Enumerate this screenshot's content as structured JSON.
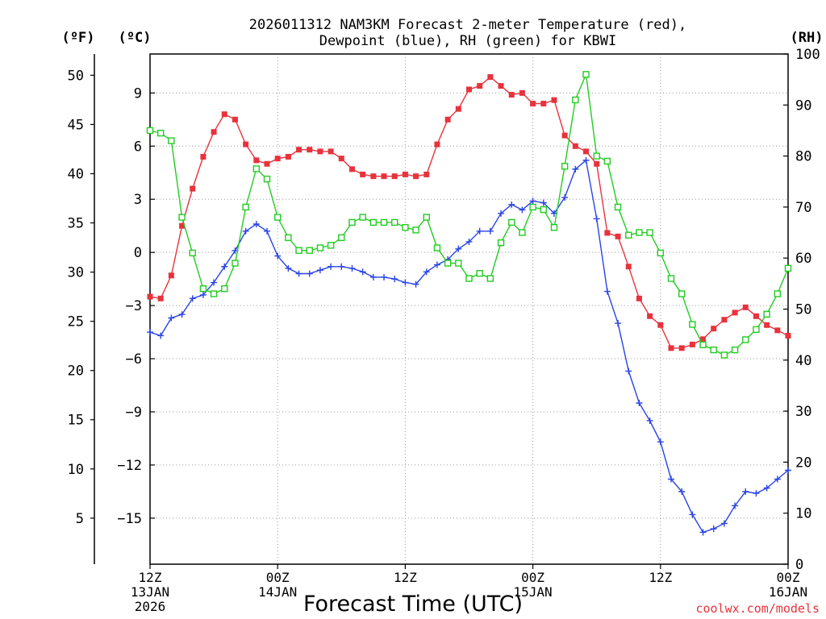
{
  "chart_data": {
    "type": "line",
    "title_line1": "2026011312 NAM3KM Forecast 2-meter Temperature (red),",
    "title_line2": "Dewpoint (blue), RH (green) for KBWI",
    "left_outer_unit": "(ºF)",
    "left_inner_unit": "(ºC)",
    "right_unit": "(RH)",
    "xlabel": "Forecast Time (UTC)",
    "credit": "coolwx.com/models",
    "xlim_hours": [
      0,
      36
    ],
    "celsius_ylim": [
      -17.6,
      11.2
    ],
    "rh_ylim": [
      0,
      100
    ],
    "fahrenheit_ticks": [
      {
        "value": 50,
        "label": "50"
      },
      {
        "value": 45,
        "label": "45"
      },
      {
        "value": 40,
        "label": "40"
      },
      {
        "value": 35,
        "label": "35"
      },
      {
        "value": 30,
        "label": "30"
      },
      {
        "value": 25,
        "label": "25"
      },
      {
        "value": 20,
        "label": "20"
      },
      {
        "value": 15,
        "label": "15"
      },
      {
        "value": 10,
        "label": "10"
      },
      {
        "value": 5,
        "label": "5"
      }
    ],
    "celsius_ticks": [
      {
        "value": 9,
        "label": "9"
      },
      {
        "value": 6,
        "label": "6"
      },
      {
        "value": 3,
        "label": "3"
      },
      {
        "value": 0,
        "label": "0"
      },
      {
        "value": -3,
        "label": "−3"
      },
      {
        "value": -6,
        "label": "−6"
      },
      {
        "value": -9,
        "label": "−9"
      },
      {
        "value": -12,
        "label": "−12"
      },
      {
        "value": -15,
        "label": "−15"
      }
    ],
    "rh_ticks": [
      {
        "value": 100,
        "label": "100"
      },
      {
        "value": 90,
        "label": "90"
      },
      {
        "value": 80,
        "label": "80"
      },
      {
        "value": 70,
        "label": "70"
      },
      {
        "value": 60,
        "label": "60"
      },
      {
        "value": 50,
        "label": "50"
      },
      {
        "value": 40,
        "label": "40"
      },
      {
        "value": 30,
        "label": "30"
      },
      {
        "value": 20,
        "label": "20"
      },
      {
        "value": 10,
        "label": "10"
      },
      {
        "value": 0,
        "label": "0"
      }
    ],
    "x_ticks": [
      {
        "hour": 0,
        "lines": [
          "12Z",
          "13JAN",
          "2026"
        ]
      },
      {
        "hour": 7.2,
        "lines": [
          "00Z",
          "14JAN"
        ]
      },
      {
        "hour": 14.4,
        "lines": [
          "12Z"
        ]
      },
      {
        "hour": 21.6,
        "lines": [
          "00Z",
          "15JAN"
        ]
      },
      {
        "hour": 28.8,
        "lines": [
          "12Z"
        ]
      },
      {
        "hour": 36,
        "lines": [
          "00Z",
          "16JAN"
        ]
      }
    ],
    "series": [
      {
        "name": "Temperature",
        "color": "#e8323c",
        "marker": "filled-square",
        "x": [
          0,
          0.6,
          1.2,
          1.8,
          2.4,
          3.0,
          3.6,
          4.2,
          4.8,
          5.4,
          6.0,
          6.6,
          7.2,
          7.8,
          8.4,
          9.0,
          9.6,
          10.2,
          10.8,
          11.4,
          12.0,
          12.6,
          13.2,
          13.8,
          14.4,
          15.0,
          15.6,
          16.2,
          16.8,
          17.4,
          18.0,
          18.6,
          19.2,
          19.8,
          20.4,
          21.0,
          21.6,
          22.2,
          22.8,
          23.4,
          24.0,
          24.6,
          25.2,
          25.8,
          26.4,
          27.0,
          27.6,
          28.2,
          28.8,
          29.4,
          30.0,
          30.6,
          31.2,
          31.8,
          32.4,
          33.0,
          33.6,
          34.2,
          34.8,
          35.4,
          36.0
        ],
        "values": [
          -2.5,
          -2.6,
          -1.3,
          1.5,
          3.6,
          5.4,
          6.8,
          7.8,
          7.5,
          6.1,
          5.2,
          5.0,
          5.3,
          5.4,
          5.8,
          5.8,
          5.7,
          5.7,
          5.3,
          4.7,
          4.4,
          4.3,
          4.3,
          4.3,
          4.4,
          4.3,
          4.4,
          6.1,
          7.5,
          8.1,
          9.2,
          9.4,
          9.9,
          9.4,
          8.9,
          9.0,
          8.4,
          8.4,
          8.6,
          6.6,
          6.0,
          5.7,
          5.0,
          1.1,
          0.9,
          -0.8,
          -2.6,
          -3.6,
          -4.1,
          -5.4,
          -5.4,
          -5.2,
          -4.9,
          -4.3,
          -3.8,
          -3.4,
          -3.1,
          -3.6,
          -4.1,
          -4.4,
          -4.7
        ]
      },
      {
        "name": "Dewpoint",
        "color": "#2a44e6",
        "marker": "plus",
        "x": [
          0,
          0.6,
          1.2,
          1.8,
          2.4,
          3.0,
          3.6,
          4.2,
          4.8,
          5.4,
          6.0,
          6.6,
          7.2,
          7.8,
          8.4,
          9.0,
          9.6,
          10.2,
          10.8,
          11.4,
          12.0,
          12.6,
          13.2,
          13.8,
          14.4,
          15.0,
          15.6,
          16.2,
          16.8,
          17.4,
          18.0,
          18.6,
          19.2,
          19.8,
          20.4,
          21.0,
          21.6,
          22.2,
          22.8,
          23.4,
          24.0,
          24.6,
          25.2,
          25.8,
          26.4,
          27.0,
          27.6,
          28.2,
          28.8,
          29.4,
          30.0,
          30.6,
          31.2,
          31.8,
          32.4,
          33.0,
          33.6,
          34.2,
          34.8,
          35.4,
          36.0
        ],
        "values": [
          -4.5,
          -4.7,
          -3.7,
          -3.5,
          -2.6,
          -2.4,
          -1.7,
          -0.8,
          0.1,
          1.2,
          1.6,
          1.2,
          -0.2,
          -0.9,
          -1.2,
          -1.2,
          -1.0,
          -0.8,
          -0.8,
          -0.9,
          -1.1,
          -1.4,
          -1.4,
          -1.5,
          -1.7,
          -1.8,
          -1.1,
          -0.7,
          -0.4,
          0.2,
          0.6,
          1.2,
          1.2,
          2.2,
          2.7,
          2.4,
          2.9,
          2.8,
          2.2,
          3.1,
          4.7,
          5.2,
          1.9,
          -2.2,
          -4.0,
          -6.7,
          -8.5,
          -9.5,
          -10.7,
          -12.8,
          -13.5,
          -14.8,
          -15.8,
          -15.6,
          -15.3,
          -14.3,
          -13.5,
          -13.6,
          -13.3,
          -12.8,
          -12.3
        ]
      },
      {
        "name": "RH",
        "color": "#22cc22",
        "marker": "open-square",
        "x": [
          0,
          0.6,
          1.2,
          1.8,
          2.4,
          3.0,
          3.6,
          4.2,
          4.8,
          5.4,
          6.0,
          6.6,
          7.2,
          7.8,
          8.4,
          9.0,
          9.6,
          10.2,
          10.8,
          11.4,
          12.0,
          12.6,
          13.2,
          13.8,
          14.4,
          15.0,
          15.6,
          16.2,
          16.8,
          17.4,
          18.0,
          18.6,
          19.2,
          19.8,
          20.4,
          21.0,
          21.6,
          22.2,
          22.8,
          23.4,
          24.0,
          24.6,
          25.2,
          25.8,
          26.4,
          27.0,
          27.6,
          28.2,
          28.8,
          29.4,
          30.0,
          30.6,
          31.2,
          31.8,
          32.4,
          33.0,
          33.6,
          34.2,
          34.8,
          35.4,
          36.0
        ],
        "values": [
          85,
          84.5,
          83,
          68,
          61,
          54,
          53,
          54,
          59,
          70,
          77.5,
          75.5,
          68,
          64,
          61.5,
          61.5,
          62,
          62.5,
          64,
          67,
          68,
          67,
          67,
          67,
          66,
          65.5,
          68,
          62,
          59,
          59,
          56,
          57,
          56,
          63,
          67,
          65,
          70,
          69.5,
          66,
          78,
          91,
          96,
          80,
          79,
          70,
          64.5,
          65,
          65,
          61,
          56,
          53,
          47,
          43,
          42,
          41,
          42,
          44,
          46,
          49,
          53,
          58
        ]
      }
    ]
  }
}
